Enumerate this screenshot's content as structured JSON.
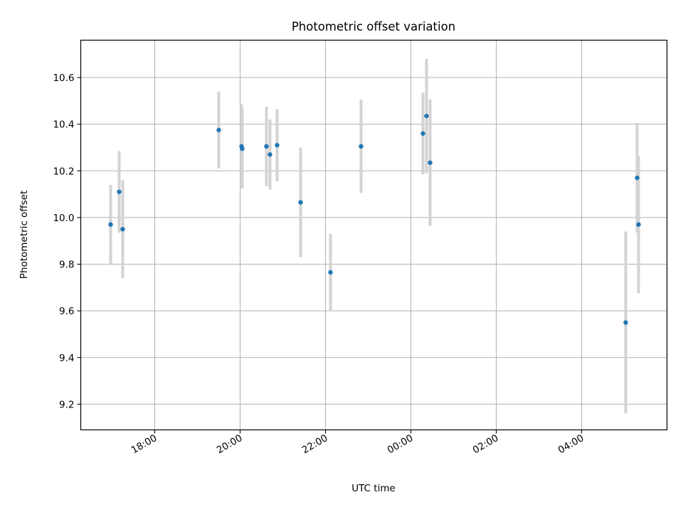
{
  "chart_data": {
    "type": "scatter",
    "title": "Photometric offset variation",
    "xlabel": "UTC time",
    "ylabel": "Photometric offset",
    "grid": true,
    "x_axis": {
      "kind": "time",
      "range": [
        "16:16",
        "06:00"
      ],
      "tick_labels": [
        "18:00",
        "20:00",
        "22:00",
        "00:00",
        "02:00",
        "04:00"
      ]
    },
    "y_axis": {
      "range": [
        9.09,
        10.76
      ],
      "tick_labels": [
        "9.2",
        "9.4",
        "9.6",
        "9.8",
        "10.0",
        "10.2",
        "10.4",
        "10.6"
      ]
    },
    "series": [
      {
        "color": "#1f77b4",
        "error_bar_color": "#d3d3d3",
        "points": [
          {
            "x": "16:58",
            "y": 9.97,
            "err": 0.17
          },
          {
            "x": "17:10",
            "y": 10.11,
            "err": 0.175
          },
          {
            "x": "17:15",
            "y": 9.95,
            "err": 0.21
          },
          {
            "x": "19:30",
            "y": 10.375,
            "err": 0.165
          },
          {
            "x": "20:02",
            "y": 10.305,
            "err": 0.18
          },
          {
            "x": "20:03",
            "y": 10.295,
            "err": 0.17
          },
          {
            "x": "20:37",
            "y": 10.305,
            "err": 0.17
          },
          {
            "x": "20:42",
            "y": 10.27,
            "err": 0.15
          },
          {
            "x": "20:52",
            "y": 10.31,
            "err": 0.155
          },
          {
            "x": "21:25",
            "y": 10.065,
            "err": 0.235
          },
          {
            "x": "22:07",
            "y": 9.765,
            "err": 0.165
          },
          {
            "x": "22:50",
            "y": 10.305,
            "err": 0.2
          },
          {
            "x": "00:17",
            "y": 10.36,
            "err": 0.175
          },
          {
            "x": "00:22",
            "y": 10.435,
            "err": 0.245
          },
          {
            "x": "00:27",
            "y": 10.235,
            "err": 0.27
          },
          {
            "x": "05:02",
            "y": 9.55,
            "err": 0.39
          },
          {
            "x": "05:18",
            "y": 10.17,
            "err": 0.235
          },
          {
            "x": "05:20",
            "y": 9.97,
            "err": 0.295
          }
        ]
      }
    ]
  }
}
